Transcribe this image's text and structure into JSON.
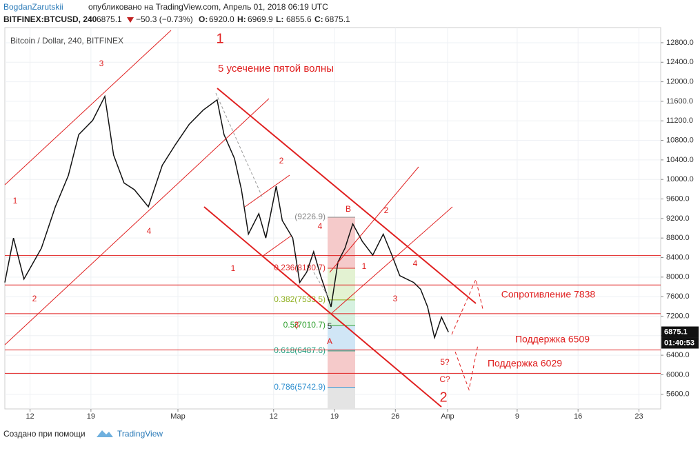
{
  "header": {
    "author": "BogdanZarutskii",
    "published": "опубликовано на TradingView.com, Апрель 01, 2018 06:19 UTC",
    "symbol": "BITFINEX:BTCUSD, 240",
    "last": "6875.1",
    "change": "−50.3 (−0.73%)",
    "ohlc": [
      {
        "key": "O:",
        "value": "6920.0"
      },
      {
        "key": "H:",
        "value": "6969.9"
      },
      {
        "key": "L:",
        "value": "6855.6"
      },
      {
        "key": "C:",
        "value": "6875.1"
      }
    ]
  },
  "chart_data": {
    "type": "line",
    "title": "Bitcoin / Dollar, 240, BITFINEX",
    "color": "#111111",
    "x": [
      8.1,
      9.1,
      10.3,
      12.3,
      13.9,
      15.4,
      16.6,
      18.2,
      19.6,
      20.6,
      21.8,
      23.0,
      24.6,
      26.2,
      27.7,
      29.3,
      30.9,
      32.5,
      33.3,
      34.5,
      35.3,
      36.1,
      37.3,
      38.1,
      39.3,
      40.0,
      41.2,
      42.0,
      42.8,
      43.6,
      44.4,
      45.6,
      46.4,
      47.2,
      48.1,
      49.2,
      50.4,
      51.6,
      52.6,
      53.5,
      55.1,
      55.9,
      56.7,
      57.5,
      58.3,
      59.1
    ],
    "values": [
      7890,
      8800,
      7960,
      8590,
      9440,
      10080,
      10920,
      11210,
      11700,
      10500,
      9930,
      9790,
      9440,
      10290,
      10710,
      11130,
      11420,
      11630,
      10920,
      10430,
      9790,
      8880,
      9300,
      8800,
      9860,
      9160,
      8800,
      7890,
      8100,
      8520,
      8030,
      7390,
      8310,
      8590,
      9090,
      8730,
      8450,
      8880,
      8450,
      8030,
      7890,
      7750,
      7390,
      6760,
      7180,
      6875.1
    ],
    "xlim": [
      8.1,
      83.5
    ],
    "ylim": [
      5300,
      13110
    ],
    "xticks": [
      {
        "value": 11,
        "label": "12"
      },
      {
        "value": 18,
        "label": "19"
      },
      {
        "value": 28,
        "label": "Мар"
      },
      {
        "value": 39,
        "label": "12"
      },
      {
        "value": 46,
        "label": "19"
      },
      {
        "value": 53,
        "label": "26"
      },
      {
        "value": 59,
        "label": "Апр"
      },
      {
        "value": 67,
        "label": "9"
      },
      {
        "value": 74,
        "label": "16"
      },
      {
        "value": 81,
        "label": "23"
      }
    ],
    "yticks": [
      {
        "value": 5600,
        "label": "5600.0"
      },
      {
        "value": 6000,
        "label": "6000.0"
      },
      {
        "value": 6400,
        "label": "6400.0"
      },
      {
        "value": 6800,
        "label": "6800.0"
      },
      {
        "value": 7200,
        "label": "7200.0"
      },
      {
        "value": 7600,
        "label": "7600.0"
      },
      {
        "value": 8000,
        "label": "8000.0"
      },
      {
        "value": 8400,
        "label": "8400.0"
      },
      {
        "value": 8800,
        "label": "8800.0"
      },
      {
        "value": 9200,
        "label": "9200.0"
      },
      {
        "value": 9600,
        "label": "9600.0"
      },
      {
        "value": 10000,
        "label": "10000.0"
      },
      {
        "value": 10400,
        "label": "10400.0"
      },
      {
        "value": 10800,
        "label": "10800.0"
      },
      {
        "value": 11200,
        "label": "11200.0"
      },
      {
        "value": 11600,
        "label": "11600.0"
      },
      {
        "value": 12000,
        "label": "12000.0"
      },
      {
        "value": 12400,
        "label": "12400.0"
      },
      {
        "value": 12800,
        "label": "12800.0"
      }
    ],
    "grid": true,
    "price_tag": {
      "value": 6875.1,
      "label": "6875.1"
    },
    "timer": "01:40:53",
    "levels": [
      {
        "value": 8440
      },
      {
        "value": 7838,
        "label": "Сопротивление 7838"
      },
      {
        "value": 7250
      },
      {
        "value": 6509,
        "label": "Поддержка 6509"
      },
      {
        "value": 6029,
        "label": "Поддержка 6029"
      }
    ],
    "fib": [
      {
        "value": 9226.9,
        "label": "(9226.9)",
        "color": "#888888"
      },
      {
        "value": 8180.7,
        "label": "0.236(8180.7)",
        "color": "#e03030"
      },
      {
        "value": 7533.5,
        "label": "0.382(7533.5)",
        "color": "#8fb020"
      },
      {
        "value": 7010.7,
        "label": "0.5(7010.7)",
        "color": "#30a030"
      },
      {
        "value": 6487.6,
        "label": "0.618(6487.6)",
        "color": "#20a080"
      },
      {
        "value": 5742.9,
        "label": "0.786(5742.9)",
        "color": "#3090d0"
      }
    ],
    "annotations": [
      "1",
      "5 усечение пятой волны",
      "3",
      "1",
      "2",
      "4",
      "2",
      "1",
      "3",
      "4",
      "B",
      "2",
      "1",
      "4",
      "3",
      "5",
      "A",
      "5?",
      "C?",
      "2"
    ]
  },
  "footer": {
    "made_with": "Создано при помощи",
    "brand": "TradingView"
  }
}
